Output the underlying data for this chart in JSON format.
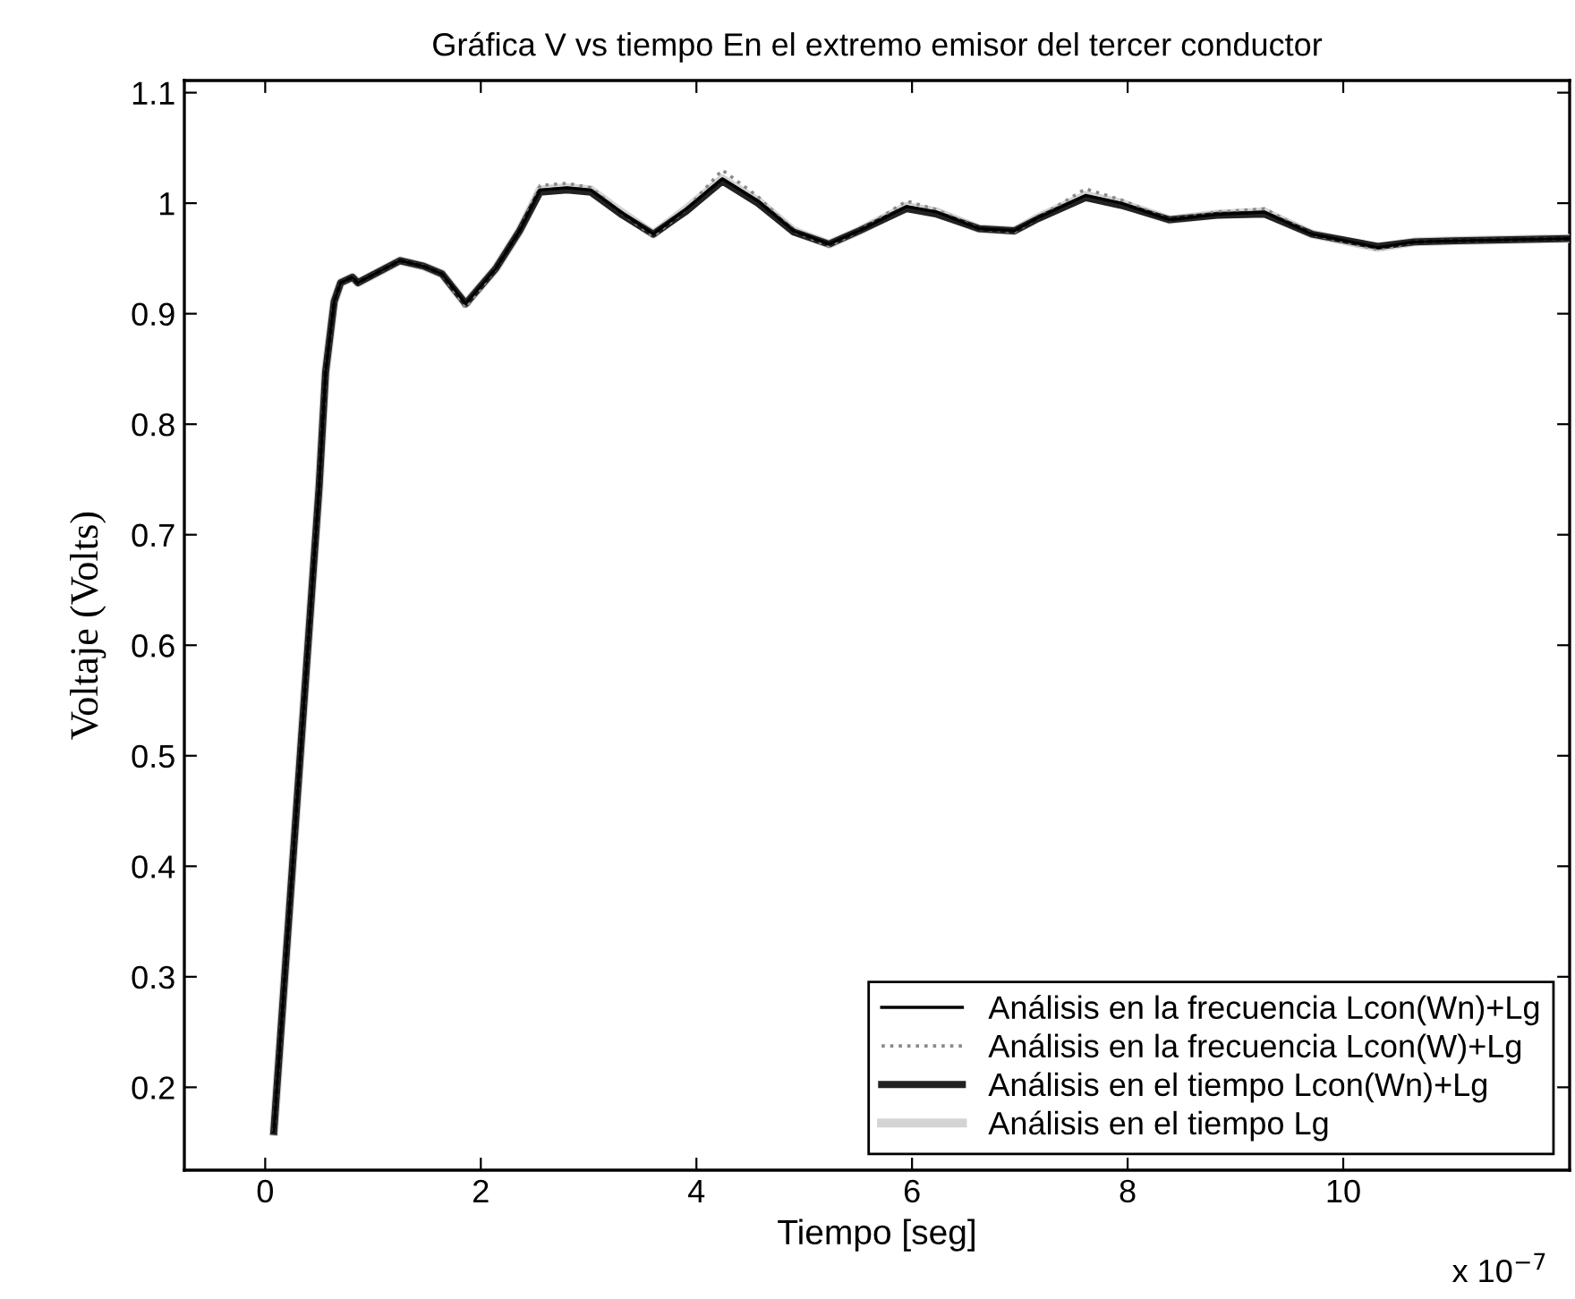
{
  "chart_data": {
    "type": "line",
    "title": "Gráfica V vs tiempo En el extremo emisor del tercer conductor",
    "xlabel": "Tiempo [seg]",
    "ylabel": "Voltaje (Volts)",
    "x": [
      0.08,
      0.5,
      0.56,
      0.64,
      0.7,
      0.81,
      0.86,
      1.25,
      1.47,
      1.64,
      1.86,
      2.14,
      2.36,
      2.55,
      2.8,
      3.02,
      3.3,
      3.6,
      3.91,
      4.24,
      4.57,
      4.9,
      5.23,
      5.51,
      5.95,
      6.23,
      6.62,
      6.95,
      7.17,
      7.61,
      7.94,
      8.39,
      8.83,
      9.27,
      9.71,
      10.32,
      10.66,
      11.04,
      12.09
    ],
    "series": [
      {
        "name": "Análisis en la frecuencia Lcon(Wn)+Lg",
        "color": "#000000",
        "line_style": "solid",
        "values": [
          0.16,
          0.743,
          0.847,
          0.911,
          0.928,
          0.933,
          0.928,
          0.948,
          0.943,
          0.936,
          0.909,
          0.941,
          0.975,
          1.012,
          1.014,
          1.012,
          0.992,
          0.972,
          0.995,
          1.022,
          1.002,
          0.975,
          0.963,
          0.975,
          0.997,
          0.992,
          0.977,
          0.975,
          0.987,
          1.007,
          1.0,
          0.985,
          0.99,
          0.992,
          0.972,
          0.96,
          0.965,
          0.966,
          0.968
        ]
      },
      {
        "name": "Análisis en la frecuencia Lcon(W)+Lg",
        "color": "#8a8a8a",
        "line_style": "dotted",
        "values": [
          0.16,
          0.743,
          0.847,
          0.911,
          0.928,
          0.933,
          0.928,
          0.948,
          0.943,
          0.936,
          0.905,
          0.941,
          0.975,
          1.016,
          1.018,
          1.014,
          0.992,
          0.97,
          0.995,
          1.03,
          1.006,
          0.975,
          0.961,
          0.975,
          1.002,
          0.994,
          0.977,
          0.974,
          0.987,
          1.013,
          1.003,
          0.985,
          0.992,
          0.995,
          0.972,
          0.958,
          0.965,
          0.966,
          0.968
        ]
      },
      {
        "name": "Análisis en el tiempo Lcon(Wn)+Lg",
        "color": "#222222",
        "line_style": "solid",
        "values": [
          0.16,
          0.743,
          0.847,
          0.911,
          0.928,
          0.933,
          0.928,
          0.948,
          0.943,
          0.936,
          0.909,
          0.941,
          0.975,
          1.01,
          1.012,
          1.01,
          0.99,
          0.972,
          0.993,
          1.02,
          1.0,
          0.974,
          0.963,
          0.975,
          0.995,
          0.99,
          0.977,
          0.975,
          0.986,
          1.005,
          0.998,
          0.985,
          0.989,
          0.99,
          0.972,
          0.961,
          0.965,
          0.966,
          0.968
        ]
      },
      {
        "name": "Análisis en el tiempo Lg",
        "color": "#d4d4d4",
        "line_style": "solid",
        "values": [
          0.16,
          0.743,
          0.847,
          0.911,
          0.928,
          0.933,
          0.928,
          0.948,
          0.943,
          0.936,
          0.909,
          0.941,
          0.975,
          1.012,
          1.014,
          1.012,
          0.992,
          0.972,
          0.995,
          1.022,
          1.002,
          0.975,
          0.963,
          0.975,
          0.997,
          0.992,
          0.977,
          0.975,
          0.987,
          1.007,
          1.0,
          0.985,
          0.99,
          0.992,
          0.972,
          0.96,
          0.965,
          0.966,
          0.968
        ]
      }
    ],
    "xlim": [
      -0.75,
      12.1
    ],
    "xticks": [
      0,
      2,
      4,
      6,
      8,
      10
    ],
    "ylim": [
      0.125,
      1.111
    ],
    "yticks": [
      0.2,
      0.3,
      0.4,
      0.5,
      0.6,
      0.7,
      0.8,
      0.9,
      1,
      1.1
    ],
    "annotations": [
      "x 10$^{−7}$"
    ],
    "grid": false,
    "legend": "bottom right",
    "marker": "none"
  }
}
